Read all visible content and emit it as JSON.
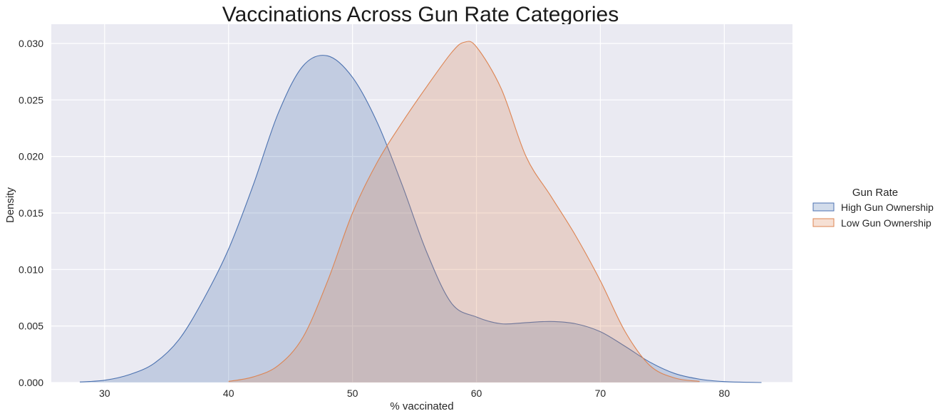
{
  "chart_data": {
    "type": "area",
    "title": "Vaccinations Across Gun Rate Categories",
    "xlabel": "% vaccinated",
    "ylabel": "Density",
    "xlim": [
      25.7,
      85.5
    ],
    "ylim": [
      0,
      0.0317
    ],
    "xticks": [
      30,
      40,
      50,
      60,
      70,
      80
    ],
    "yticks": [
      0.0,
      0.005,
      0.01,
      0.015,
      0.02,
      0.025,
      0.03
    ],
    "ytick_labels": [
      "0.000",
      "0.005",
      "0.010",
      "0.015",
      "0.020",
      "0.025",
      "0.030"
    ],
    "grid": true,
    "legend": {
      "title": "Gun Rate",
      "placement": "right"
    },
    "series": [
      {
        "name": "High Gun Ownership",
        "color": "#4c72b0",
        "x": [
          28,
          30,
          32,
          34,
          36,
          38,
          40,
          42,
          44,
          46,
          48,
          50,
          52,
          54,
          56,
          58,
          60,
          62,
          64,
          66,
          68,
          70,
          72,
          74,
          76,
          78,
          80,
          82,
          83
        ],
        "y": [
          5e-05,
          0.0002,
          0.0007,
          0.0017,
          0.0038,
          0.0074,
          0.0118,
          0.0175,
          0.0238,
          0.028,
          0.0289,
          0.027,
          0.023,
          0.0175,
          0.0115,
          0.007,
          0.0058,
          0.0052,
          0.0053,
          0.0054,
          0.0052,
          0.0045,
          0.0032,
          0.0018,
          0.0008,
          0.0003,
          8e-05,
          2e-05,
          0.0
        ]
      },
      {
        "name": "Low Gun Ownership",
        "color": "#dd8452",
        "x": [
          40,
          42,
          44,
          46,
          48,
          50,
          52,
          54,
          56,
          58,
          59,
          60,
          62,
          64,
          66,
          68,
          70,
          72,
          74,
          76,
          78
        ],
        "y": [
          0.0001,
          0.0005,
          0.0015,
          0.004,
          0.009,
          0.015,
          0.0195,
          0.023,
          0.0262,
          0.0292,
          0.0301,
          0.0297,
          0.026,
          0.02,
          0.0165,
          0.013,
          0.009,
          0.0045,
          0.0015,
          0.0004,
          0.0001
        ]
      }
    ]
  }
}
